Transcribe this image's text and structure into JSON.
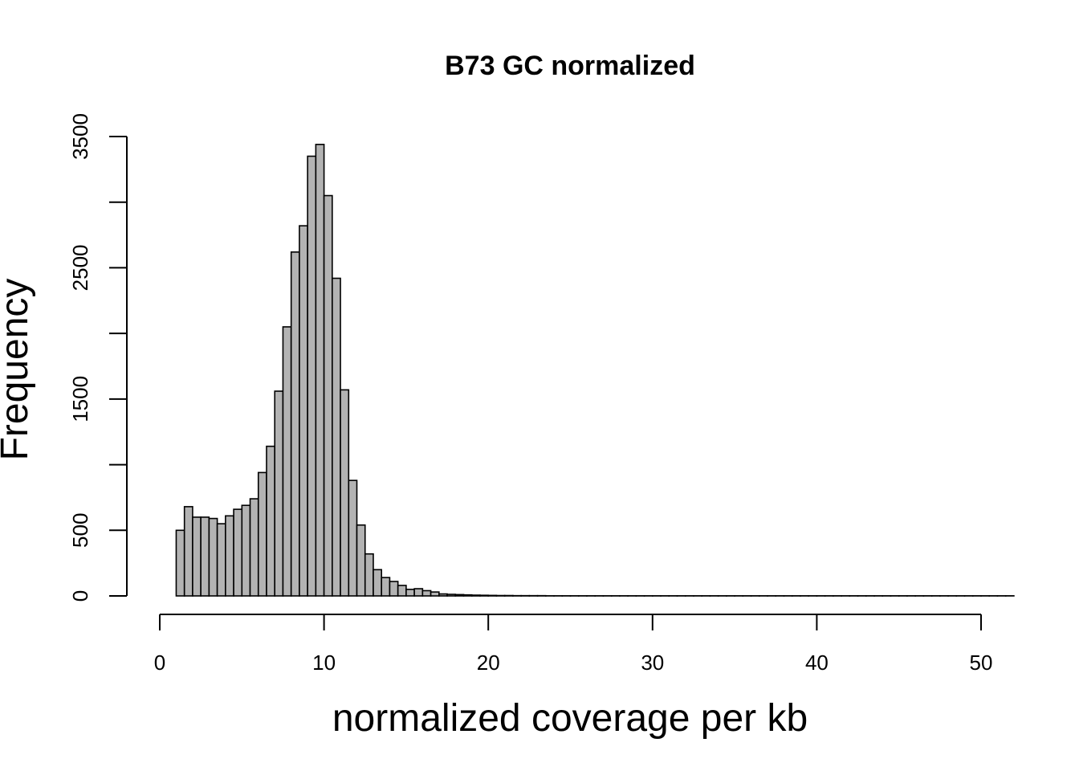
{
  "chart_data": {
    "type": "bar",
    "title": "B73 GC normalized",
    "xlabel": "normalized coverage per kb",
    "ylabel": "Frequency",
    "xlim": [
      0,
      52
    ],
    "ylim": [
      0,
      3500
    ],
    "x_ticks": [
      "0",
      "10",
      "20",
      "30",
      "40",
      "50"
    ],
    "y_ticks": [
      "0",
      "500",
      "1500",
      "2500",
      "3500"
    ],
    "bin_width": 0.5,
    "bin_start": 1.0,
    "values": [
      500,
      680,
      600,
      600,
      590,
      550,
      610,
      660,
      690,
      740,
      940,
      1140,
      1560,
      2050,
      2620,
      2820,
      3350,
      3440,
      3050,
      2420,
      1570,
      880,
      540,
      320,
      200,
      140,
      110,
      80,
      50,
      55,
      40,
      30,
      15,
      12,
      10,
      8,
      6,
      5,
      4,
      3,
      3,
      2,
      2,
      2,
      2,
      1,
      1,
      1,
      1,
      1,
      1,
      1,
      1,
      1,
      1,
      1,
      1,
      1,
      1,
      1,
      1,
      1,
      1,
      1,
      1,
      1,
      1,
      1,
      1,
      1,
      1,
      1,
      1,
      1,
      1,
      1,
      1,
      1,
      1,
      1,
      1,
      1,
      1,
      1,
      1,
      1,
      1,
      1,
      1,
      1,
      1,
      1,
      1,
      1,
      1,
      1,
      1,
      1,
      1,
      1,
      1,
      1
    ],
    "bar_color": "#b3b3b3",
    "grid": false
  }
}
